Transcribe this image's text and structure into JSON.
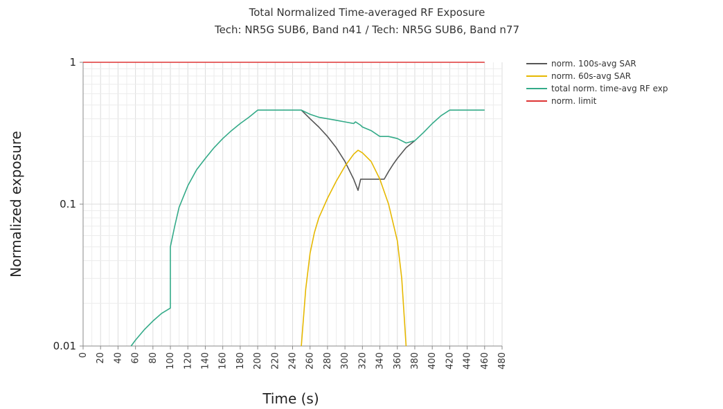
{
  "chart_data": {
    "type": "line",
    "title": "Total Normalized Time-averaged RF Exposure",
    "subtitle": "Tech: NR5G SUB6, Band n41 / Tech: NR5G SUB6, Band n77",
    "xlabel": "Time (s)",
    "ylabel": "Normalized exposure",
    "xlim": [
      0,
      480
    ],
    "ylim": [
      0.01,
      1
    ],
    "yscale": "log",
    "xticks": [
      "0",
      "20",
      "40",
      "60",
      "80",
      "100",
      "120",
      "140",
      "160",
      "180",
      "200",
      "220",
      "240",
      "260",
      "280",
      "300",
      "320",
      "340",
      "360",
      "380",
      "400",
      "420",
      "440",
      "460",
      "480"
    ],
    "yticks": [
      {
        "value": 0.01,
        "label": "0.01"
      },
      {
        "value": 0.1,
        "label": "0.1"
      },
      {
        "value": 1,
        "label": "1"
      }
    ],
    "grid": true,
    "legend_position": "top-right",
    "series": [
      {
        "name": "norm. 100s-avg SAR",
        "color": "#555555",
        "points": [
          [
            250,
            0.46
          ],
          [
            260,
            0.4
          ],
          [
            270,
            0.35
          ],
          [
            280,
            0.3
          ],
          [
            290,
            0.25
          ],
          [
            300,
            0.2
          ],
          [
            310,
            0.15
          ],
          [
            315,
            0.125
          ],
          [
            318,
            0.15
          ],
          [
            345,
            0.15
          ],
          [
            350,
            0.17
          ],
          [
            355,
            0.19
          ],
          [
            360,
            0.21
          ],
          [
            370,
            0.25
          ],
          [
            380,
            0.28
          ]
        ]
      },
      {
        "name": "norm. 60s-avg SAR",
        "color": "#e6b800",
        "points": [
          [
            250,
            0.01
          ],
          [
            255,
            0.025
          ],
          [
            260,
            0.045
          ],
          [
            265,
            0.063
          ],
          [
            270,
            0.08
          ],
          [
            280,
            0.11
          ],
          [
            290,
            0.145
          ],
          [
            300,
            0.185
          ],
          [
            310,
            0.225
          ],
          [
            315,
            0.24
          ],
          [
            320,
            0.23
          ],
          [
            330,
            0.2
          ],
          [
            340,
            0.15
          ],
          [
            350,
            0.1
          ],
          [
            360,
            0.055
          ],
          [
            365,
            0.03
          ],
          [
            370,
            0.01
          ]
        ]
      },
      {
        "name": "total norm. time-avg RF exp",
        "color": "#33aa88",
        "points": [
          [
            55,
            0.01
          ],
          [
            60,
            0.011
          ],
          [
            70,
            0.013
          ],
          [
            80,
            0.015
          ],
          [
            90,
            0.017
          ],
          [
            100,
            0.0185
          ],
          [
            100,
            0.05
          ],
          [
            105,
            0.07
          ],
          [
            110,
            0.095
          ],
          [
            120,
            0.135
          ],
          [
            130,
            0.175
          ],
          [
            140,
            0.21
          ],
          [
            150,
            0.25
          ],
          [
            160,
            0.29
          ],
          [
            170,
            0.33
          ],
          [
            180,
            0.37
          ],
          [
            190,
            0.41
          ],
          [
            200,
            0.46
          ],
          [
            250,
            0.46
          ],
          [
            260,
            0.43
          ],
          [
            270,
            0.41
          ],
          [
            280,
            0.4
          ],
          [
            290,
            0.39
          ],
          [
            300,
            0.38
          ],
          [
            310,
            0.37
          ],
          [
            312,
            0.38
          ],
          [
            318,
            0.36
          ],
          [
            320,
            0.35
          ],
          [
            330,
            0.33
          ],
          [
            340,
            0.3
          ],
          [
            350,
            0.3
          ],
          [
            360,
            0.29
          ],
          [
            370,
            0.27
          ],
          [
            380,
            0.28
          ],
          [
            390,
            0.32
          ],
          [
            400,
            0.37
          ],
          [
            410,
            0.42
          ],
          [
            420,
            0.46
          ],
          [
            460,
            0.46
          ]
        ]
      },
      {
        "name": "norm. limit",
        "color": "#dd3333",
        "points": [
          [
            0,
            1
          ],
          [
            460,
            1
          ]
        ]
      }
    ]
  }
}
